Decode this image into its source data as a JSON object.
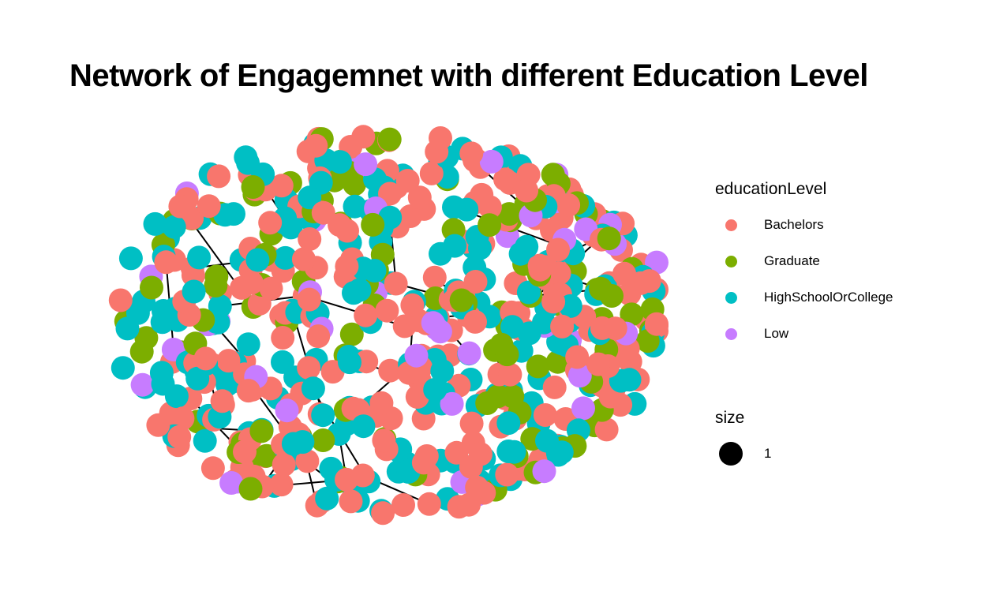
{
  "chart_data": {
    "type": "scatter",
    "subtype": "network",
    "title": "Network of Engagemnet with different Education Level",
    "xlabel": "",
    "ylabel": "",
    "grid": false,
    "legend_placement": "right",
    "color_legend": {
      "title": "educationLevel",
      "entries": [
        {
          "label": "Bachelors",
          "color": "#F8766D"
        },
        {
          "label": "Graduate",
          "color": "#7CAE00"
        },
        {
          "label": "HighSchoolOrCollege",
          "color": "#00BFC4"
        },
        {
          "label": "Low",
          "color": "#C77CFF"
        }
      ]
    },
    "size_legend": {
      "title": "size",
      "entries": [
        {
          "label": "1"
        }
      ]
    },
    "series": [
      {
        "name": "Bachelors",
        "share": 0.38
      },
      {
        "name": "Graduate",
        "share": 0.2
      },
      {
        "name": "HighSchoolOrCollege",
        "share": 0.36
      },
      {
        "name": "Low",
        "share": 0.06
      }
    ],
    "edge_color": "#000000"
  }
}
